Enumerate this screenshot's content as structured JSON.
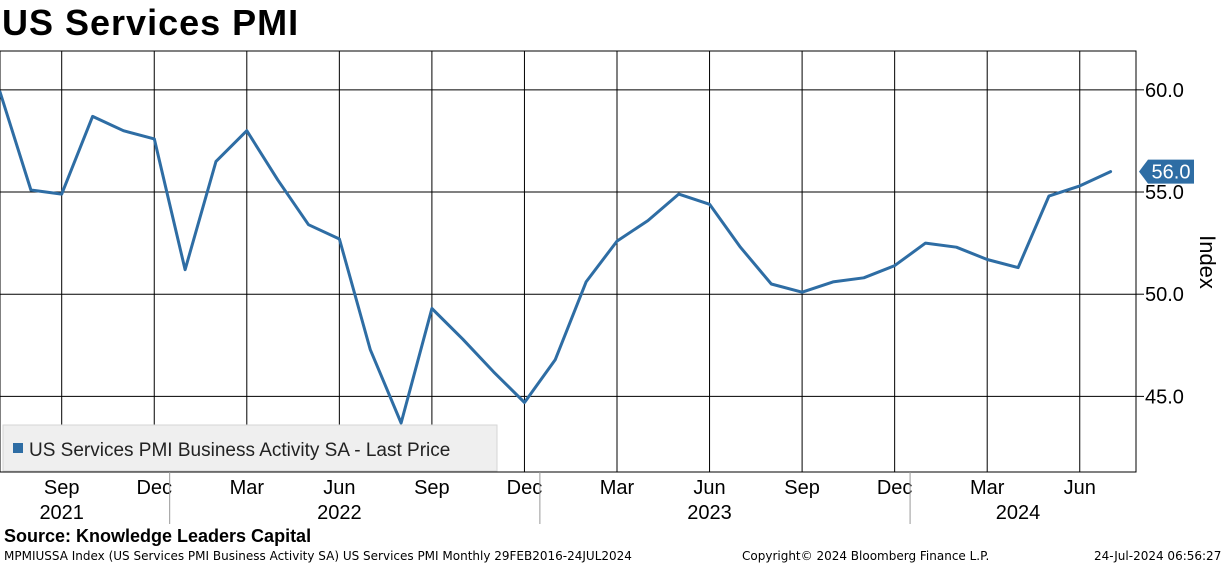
{
  "title": "US Services PMI",
  "footer": {
    "source": "Source: Knowledge Leaders Capital",
    "meta": "MPMIUSSA Index (US Services PMI Business Activity SA) US Services PMI  Monthly 29FEB2016-24JUL2024",
    "copyright": "Copyright© 2024 Bloomberg Finance L.P.",
    "timestamp": "24-Jul-2024 06:56:27"
  },
  "chart_data": {
    "type": "line",
    "ylabel": "Index",
    "ylim": [
      41.3,
      61.9
    ],
    "yticks": [
      45.0,
      50.0,
      55.0,
      60.0
    ],
    "ytick_labels": [
      "45.0",
      "50.0",
      "55.0",
      "60.0"
    ],
    "grid": true,
    "legend_position": "bottom-left",
    "last_value_label": "56.0",
    "month_ticks": [
      {
        "date": "2021-09",
        "label": "Sep"
      },
      {
        "date": "2021-12",
        "label": "Dec"
      },
      {
        "date": "2022-03",
        "label": "Mar"
      },
      {
        "date": "2022-06",
        "label": "Jun"
      },
      {
        "date": "2022-09",
        "label": "Sep"
      },
      {
        "date": "2022-12",
        "label": "Dec"
      },
      {
        "date": "2023-03",
        "label": "Mar"
      },
      {
        "date": "2023-06",
        "label": "Jun"
      },
      {
        "date": "2023-09",
        "label": "Sep"
      },
      {
        "date": "2023-12",
        "label": "Dec"
      },
      {
        "date": "2024-03",
        "label": "Mar"
      },
      {
        "date": "2024-06",
        "label": "Jun"
      }
    ],
    "year_labels": [
      {
        "label": "2021",
        "date": "2021-09"
      },
      {
        "label": "2022",
        "date": "2022-06"
      },
      {
        "label": "2023",
        "date": "2023-06"
      },
      {
        "label": "2024",
        "date": "2024-04"
      }
    ],
    "year_separators": [
      "2022-01",
      "2023-01",
      "2024-01"
    ],
    "series": [
      {
        "name": "US Services PMI Business Activity SA - Last Price",
        "color": "#2e6da4",
        "x": [
          "2021-07",
          "2021-08",
          "2021-09",
          "2021-10",
          "2021-11",
          "2021-12",
          "2022-01",
          "2022-02",
          "2022-03",
          "2022-04",
          "2022-05",
          "2022-06",
          "2022-07",
          "2022-08",
          "2022-09",
          "2022-10",
          "2022-11",
          "2022-12",
          "2023-01",
          "2023-02",
          "2023-03",
          "2023-04",
          "2023-05",
          "2023-06",
          "2023-07",
          "2023-08",
          "2023-09",
          "2023-10",
          "2023-11",
          "2023-12",
          "2024-01",
          "2024-02",
          "2024-03",
          "2024-04",
          "2024-05",
          "2024-06",
          "2024-07"
        ],
        "values": [
          59.9,
          55.1,
          54.9,
          58.7,
          58.0,
          57.6,
          51.2,
          56.5,
          58.0,
          55.6,
          53.4,
          52.7,
          47.3,
          43.7,
          49.3,
          47.8,
          46.2,
          44.7,
          46.8,
          50.6,
          52.6,
          53.6,
          54.9,
          54.4,
          52.3,
          50.5,
          50.1,
          50.6,
          50.8,
          51.4,
          52.5,
          52.3,
          51.7,
          51.3,
          54.8,
          55.3,
          56.0
        ]
      }
    ]
  }
}
